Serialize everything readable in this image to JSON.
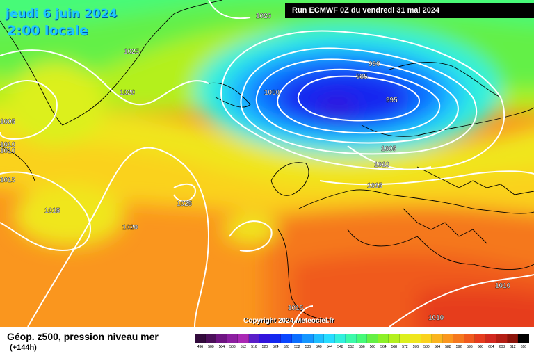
{
  "header": {
    "date": "jeudi 6 juin 2024",
    "time": "2:00 locale",
    "run": "Run ECMWF 0Z du vendredi 31 mai 2024"
  },
  "map": {
    "copyright": "Copyright 2024 Meteociel.fr",
    "isobars": [
      {
        "label": "1020"
      },
      {
        "label": "1025"
      },
      {
        "label": "1020"
      },
      {
        "label": "1005"
      },
      {
        "label": "1010"
      },
      {
        "label": "1010"
      },
      {
        "label": "1015"
      },
      {
        "label": "1015"
      },
      {
        "label": "1025"
      },
      {
        "label": "1020"
      },
      {
        "label": "990"
      },
      {
        "label": "985"
      },
      {
        "label": "1000"
      },
      {
        "label": "995"
      },
      {
        "label": "1005"
      },
      {
        "label": "1010"
      },
      {
        "label": "1015"
      },
      {
        "label": "1015"
      },
      {
        "label": "1010"
      },
      {
        "label": "1010"
      }
    ]
  },
  "footer": {
    "title": "Géop. z500, pression niveau mer",
    "forecast_hour": "(+144h)"
  },
  "scale": {
    "ticks": [
      "496",
      "500",
      "504",
      "508",
      "512",
      "516",
      "520",
      "524",
      "528",
      "532",
      "536",
      "540",
      "544",
      "548",
      "552",
      "556",
      "560",
      "564",
      "568",
      "572",
      "576",
      "580",
      "584",
      "588",
      "592",
      "596",
      "600",
      "604",
      "608",
      "612",
      "616"
    ],
    "colors": [
      "#320a3c",
      "#4b0f5a",
      "#6e1482",
      "#8c1ea0",
      "#aa28b4",
      "#5a1ec8",
      "#3214dc",
      "#1428f0",
      "#0a46ff",
      "#0a6eff",
      "#1496ff",
      "#1ebeff",
      "#28dcff",
      "#32f0dc",
      "#3cfaaa",
      "#46fa78",
      "#64f046",
      "#8cf028",
      "#b4f01e",
      "#dcf01e",
      "#f0e61e",
      "#fad21e",
      "#fab41e",
      "#fa961e",
      "#f5781e",
      "#f05a1e",
      "#e63c1e",
      "#d2281e",
      "#b41e14",
      "#8c140a",
      "#000000"
    ]
  }
}
